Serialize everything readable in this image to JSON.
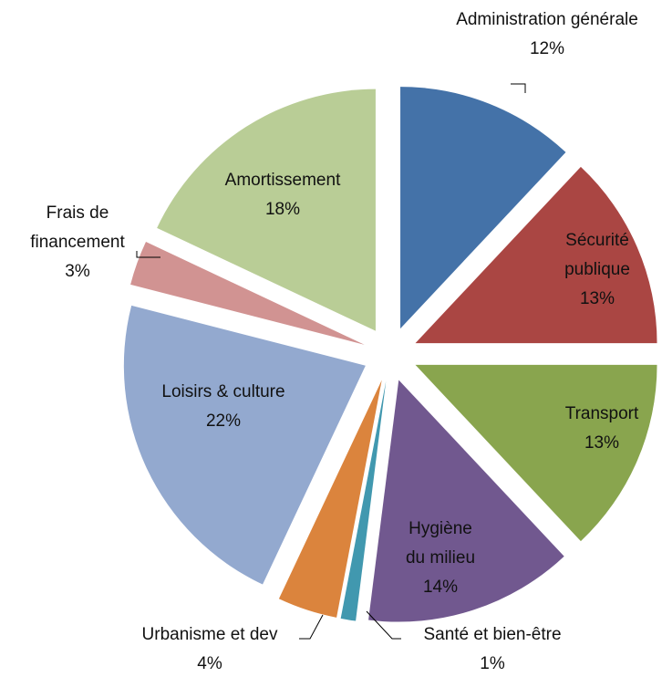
{
  "chart_data": {
    "type": "pie",
    "categories": [
      "Administration générale",
      "Sécurité publique",
      "Transport",
      "Hygiène du milieu",
      "Santé et bien-être",
      "Urbanisme et dev",
      "Loisirs & culture",
      "Frais de financement",
      "Amortissement"
    ],
    "values": [
      12,
      13,
      13,
      14,
      1,
      4,
      22,
      3,
      18
    ],
    "value_labels": [
      "12%",
      "13%",
      "13%",
      "14%",
      "1%",
      "4%",
      "22%",
      "3%",
      "18%"
    ],
    "colors": [
      "#4472a8",
      "#aa4643",
      "#89a54e",
      "#71588f",
      "#4198af",
      "#db843d",
      "#93a9cf",
      "#d19392",
      "#b9cd96"
    ]
  }
}
